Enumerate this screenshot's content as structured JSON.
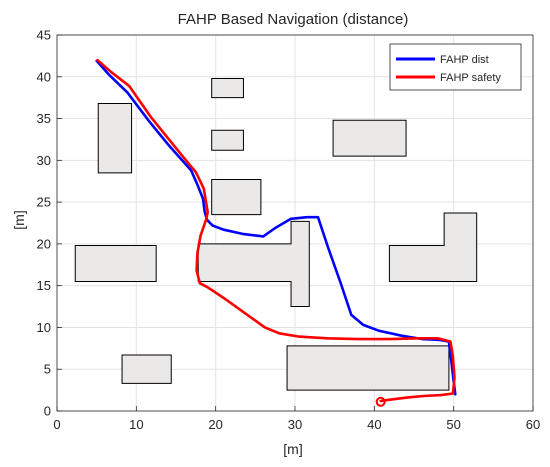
{
  "chart_data": {
    "type": "line",
    "title": "FAHP Based Navigation (distance)",
    "xlabel": "[m]",
    "ylabel": "[m]",
    "xlim": [
      0,
      60
    ],
    "ylim": [
      0,
      45
    ],
    "xticks": [
      0,
      10,
      20,
      30,
      40,
      50,
      60
    ],
    "yticks": [
      0,
      5,
      10,
      15,
      20,
      25,
      30,
      35,
      40,
      45
    ],
    "grid": true,
    "legend_position": "top-right",
    "colors": {
      "obstacle_fill": "#ebe8e8",
      "obstacle_edge": "#000000",
      "grid": "#e3e3e3"
    },
    "obstacles": [
      {
        "x0": 5.2,
        "x1": 9.4,
        "y0": 28.5,
        "y1": 36.8
      },
      {
        "x0": 19.5,
        "x1": 23.5,
        "y0": 37.5,
        "y1": 39.8
      },
      {
        "x0": 19.5,
        "x1": 23.5,
        "y0": 31.2,
        "y1": 33.6
      },
      {
        "x0": 19.5,
        "x1": 25.7,
        "y0": 23.5,
        "y1": 27.7
      },
      {
        "x0": 34.8,
        "x1": 44.0,
        "y0": 30.5,
        "y1": 34.8
      },
      {
        "x0": 2.3,
        "x1": 12.5,
        "y0": 15.5,
        "y1": 19.8
      },
      {
        "x0": 8.2,
        "x1": 14.4,
        "y0": 3.3,
        "y1": 6.7
      },
      {
        "x0": 29.0,
        "x1": 49.4,
        "y0": 2.5,
        "y1": 7.8
      },
      {
        "points": [
          [
            17.8,
            15.5
          ],
          [
            29.5,
            15.5
          ],
          [
            29.5,
            12.5
          ],
          [
            31.8,
            12.5
          ],
          [
            31.8,
            22.7
          ],
          [
            29.5,
            22.7
          ],
          [
            29.5,
            20.0
          ],
          [
            17.8,
            20.0
          ]
        ]
      },
      {
        "points": [
          [
            41.9,
            15.5
          ],
          [
            52.9,
            15.5
          ],
          [
            52.9,
            23.7
          ],
          [
            48.8,
            23.7
          ],
          [
            48.8,
            19.8
          ],
          [
            41.9,
            19.8
          ]
        ]
      }
    ],
    "series": [
      {
        "name": "FAHP dist",
        "color": "#0000ff",
        "x": [
          5.0,
          6.5,
          8.9,
          11.6,
          14.0,
          16.9,
          17.7,
          18.4,
          18.6,
          18.9,
          19.6,
          21.0,
          23.4,
          26.0,
          27.5,
          29.5,
          31.5,
          32.9,
          34.2,
          35.8,
          37.1,
          38.6,
          40.6,
          43.5,
          46.1,
          48.3,
          49.4,
          49.7,
          50.0,
          50.2
        ],
        "y": [
          41.9,
          40.3,
          38.1,
          34.7,
          31.9,
          28.8,
          27.1,
          25.4,
          23.9,
          22.9,
          22.2,
          21.7,
          21.2,
          20.9,
          21.9,
          23.0,
          23.2,
          23.2,
          19.5,
          15.2,
          11.5,
          10.3,
          9.6,
          9.0,
          8.6,
          8.5,
          8.3,
          6.0,
          3.5,
          2.0
        ]
      },
      {
        "name": "FAHP safety",
        "color": "#ff0000",
        "x": [
          40.8,
          42.3,
          44.1,
          46.2,
          48.4,
          49.9,
          50.1,
          49.9,
          49.6,
          48.0,
          45.5,
          42.0,
          38.0,
          34.0,
          30.5,
          28.0,
          26.2,
          24.0,
          21.2,
          19.0,
          18.0,
          17.6,
          17.7,
          18.1,
          18.8,
          19.0,
          18.5,
          17.5,
          16.6,
          14.2,
          11.9,
          9.1,
          6.8,
          5.1
        ],
        "y": [
          1.2,
          1.4,
          1.6,
          1.8,
          1.9,
          2.1,
          4.0,
          6.5,
          8.3,
          8.7,
          8.7,
          8.6,
          8.6,
          8.7,
          8.9,
          9.3,
          10.0,
          11.5,
          13.4,
          14.8,
          15.3,
          16.8,
          18.9,
          21.0,
          22.9,
          23.8,
          26.6,
          28.6,
          29.6,
          32.4,
          35.1,
          38.9,
          40.6,
          42.0
        ]
      }
    ],
    "start_marker": {
      "x": 40.8,
      "y": 1.1
    }
  }
}
